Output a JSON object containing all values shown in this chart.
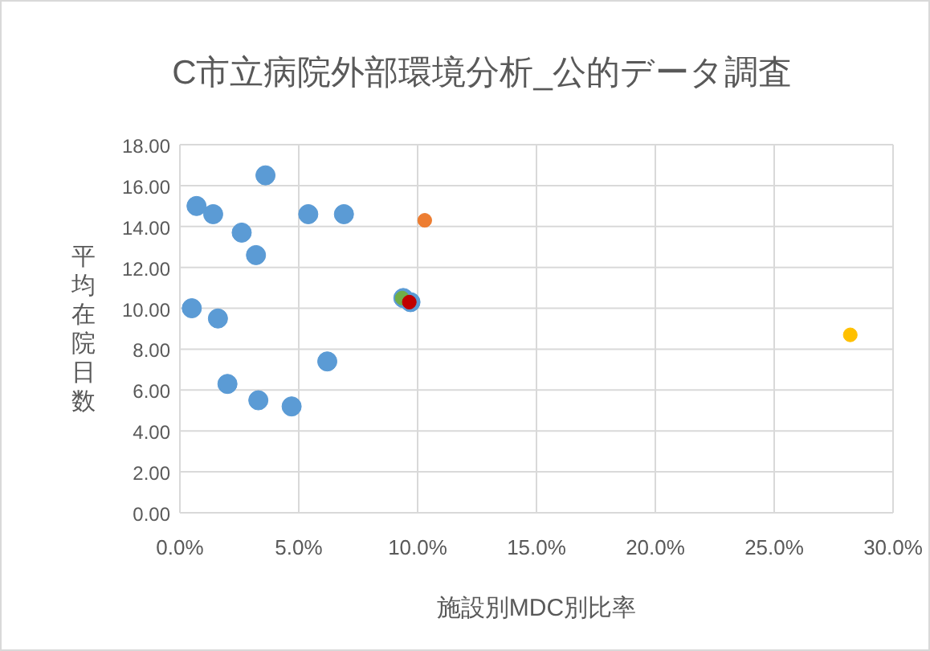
{
  "chart_data": {
    "type": "scatter",
    "title": "C市立病院外部環境分析_公的データ調査",
    "xlabel": "施設別MDC別比率",
    "ylabel": "平均在院日数",
    "xlim": [
      0,
      30
    ],
    "xticks": [
      {
        "value": 0,
        "label": "0.0%"
      },
      {
        "value": 5,
        "label": "5.0%"
      },
      {
        "value": 10,
        "label": "10.0%"
      },
      {
        "value": 15,
        "label": "15.0%"
      },
      {
        "value": 20,
        "label": "20.0%"
      },
      {
        "value": 25,
        "label": "25.0%"
      },
      {
        "value": 30,
        "label": "30.0%"
      }
    ],
    "ylim": [
      0,
      18
    ],
    "yticks": [
      {
        "value": 0,
        "label": "0.00"
      },
      {
        "value": 2,
        "label": "2.00"
      },
      {
        "value": 4,
        "label": "4.00"
      },
      {
        "value": 6,
        "label": "6.00"
      },
      {
        "value": 8,
        "label": "8.00"
      },
      {
        "value": 10,
        "label": "10.00"
      },
      {
        "value": 12,
        "label": "12.00"
      },
      {
        "value": 14,
        "label": "14.00"
      },
      {
        "value": 16,
        "label": "16.00"
      },
      {
        "value": 18,
        "label": "18.00"
      }
    ],
    "grid": true,
    "marker": "circle",
    "series": [
      {
        "color": "#5b9bd5",
        "x": [
          0.7,
          1.4,
          3.6,
          2.6,
          3.2,
          0.5,
          1.6,
          2.0,
          3.3,
          4.7,
          5.4,
          6.9,
          6.2,
          9.4,
          9.7
        ],
        "values": [
          15.0,
          14.6,
          16.5,
          13.7,
          12.6,
          10.0,
          9.5,
          6.3,
          5.5,
          5.2,
          14.6,
          14.6,
          7.4,
          10.5,
          10.3
        ]
      },
      {
        "color": "#ed7d31",
        "x": [
          10.3
        ],
        "values": [
          14.3
        ]
      },
      {
        "color": "#70ad47",
        "x": [
          9.35
        ],
        "values": [
          10.5
        ]
      },
      {
        "color": "#c00000",
        "x": [
          9.65
        ],
        "values": [
          10.3
        ]
      },
      {
        "color": "#ffc000",
        "x": [
          28.2
        ],
        "values": [
          8.7
        ]
      }
    ]
  }
}
